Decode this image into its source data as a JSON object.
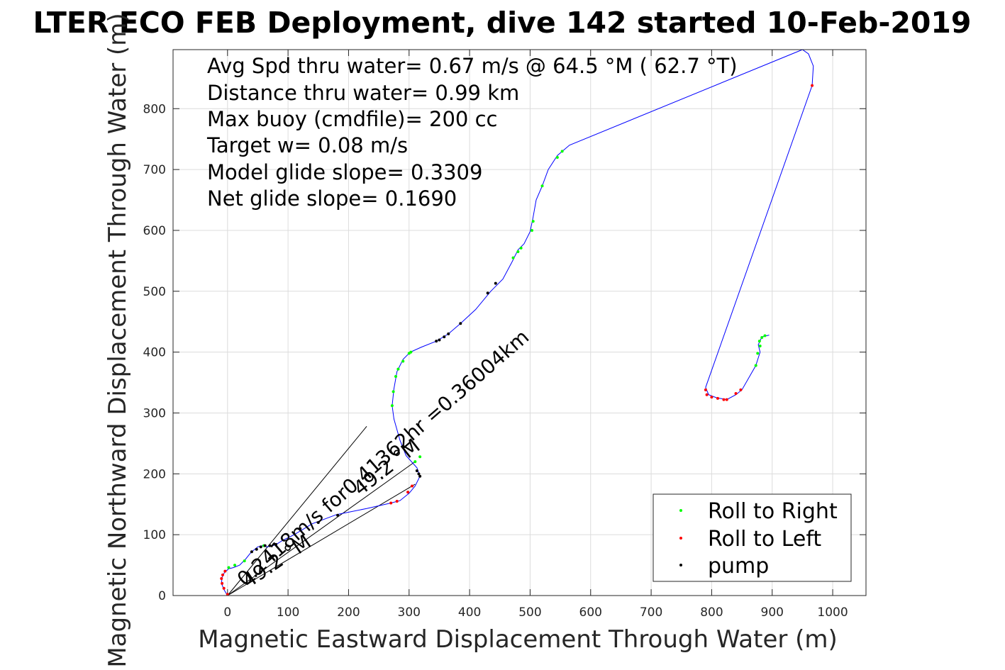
{
  "chart_data": {
    "type": "line",
    "title": "LTER ECO FEB Deployment, dive 142 started 10-Feb-2019",
    "xlabel": "Magnetic Eastward Displacement Through Water (m)",
    "ylabel": "Magnetic Northward Displacement Through Water (m)",
    "xlim": [
      -90,
      1055
    ],
    "ylim": [
      0,
      897
    ],
    "xticks": [
      0,
      100,
      200,
      300,
      400,
      500,
      600,
      700,
      800,
      900,
      1000
    ],
    "yticks": [
      0,
      100,
      200,
      300,
      400,
      500,
      600,
      700,
      800
    ],
    "grid": true,
    "track_color": "#0000ff",
    "track": [
      [
        0,
        0
      ],
      [
        -6,
        10
      ],
      [
        -10,
        20
      ],
      [
        -9,
        30
      ],
      [
        -5,
        38
      ],
      [
        2,
        44
      ],
      [
        10,
        46
      ],
      [
        20,
        50
      ],
      [
        30,
        60
      ],
      [
        38,
        70
      ],
      [
        45,
        76
      ],
      [
        50,
        80
      ],
      [
        58,
        82
      ],
      [
        65,
        80
      ],
      [
        75,
        82
      ],
      [
        82,
        85
      ],
      [
        90,
        90
      ],
      [
        110,
        100
      ],
      [
        140,
        118
      ],
      [
        180,
        133
      ],
      [
        230,
        143
      ],
      [
        270,
        152
      ],
      [
        285,
        156
      ],
      [
        300,
        168
      ],
      [
        310,
        180
      ],
      [
        318,
        196
      ],
      [
        313,
        210
      ],
      [
        295,
        230
      ],
      [
        285,
        255
      ],
      [
        275,
        290
      ],
      [
        272,
        312
      ],
      [
        275,
        340
      ],
      [
        280,
        368
      ],
      [
        290,
        388
      ],
      [
        302,
        400
      ],
      [
        320,
        408
      ],
      [
        345,
        418
      ],
      [
        365,
        430
      ],
      [
        385,
        447
      ],
      [
        410,
        470
      ],
      [
        435,
        500
      ],
      [
        455,
        520
      ],
      [
        470,
        548
      ],
      [
        480,
        568
      ],
      [
        490,
        578
      ],
      [
        500,
        598
      ],
      [
        505,
        622
      ],
      [
        510,
        650
      ],
      [
        520,
        673
      ],
      [
        530,
        700
      ],
      [
        545,
        723
      ],
      [
        565,
        740
      ],
      [
        950,
        897
      ],
      [
        960,
        890
      ],
      [
        968,
        870
      ],
      [
        966,
        838
      ],
      [
        790,
        342
      ],
      [
        795,
        330
      ],
      [
        808,
        325
      ],
      [
        825,
        322
      ],
      [
        840,
        330
      ],
      [
        850,
        338
      ],
      [
        873,
        378
      ],
      [
        880,
        400
      ],
      [
        877,
        412
      ],
      [
        883,
        425
      ],
      [
        895,
        428
      ]
    ],
    "series": [
      {
        "name": "Roll to Right",
        "color": "#00ff00",
        "x": [
          2,
          12,
          28,
          60,
          272,
          274,
          278,
          282,
          290,
          300,
          303,
          545,
          553,
          520,
          503,
          505,
          480,
          485,
          472,
          310,
          318,
          873,
          876,
          880,
          879,
          883,
          888
        ],
        "y": [
          46,
          50,
          57,
          82,
          312,
          335,
          360,
          372,
          385,
          398,
          400,
          720,
          730,
          673,
          600,
          615,
          565,
          571,
          555,
          220,
          228,
          378,
          398,
          410,
          418,
          424,
          427
        ]
      },
      {
        "name": "Roll to Left",
        "color": "#ff0000",
        "x": [
          -6,
          -9,
          -10,
          -8,
          -4,
          0,
          270,
          280,
          298,
          305,
          966,
          790,
          792,
          800,
          810,
          820,
          825,
          840,
          848
        ],
        "y": [
          12,
          20,
          28,
          34,
          40,
          2,
          152,
          155,
          170,
          180,
          838,
          338,
          330,
          326,
          324,
          322,
          322,
          332,
          338
        ]
      },
      {
        "name": "pump",
        "color": "#000000",
        "x": [
          40,
          48,
          55,
          62,
          70,
          80,
          120,
          150,
          182,
          313,
          316,
          318,
          345,
          350,
          358,
          365,
          385,
          430,
          443
        ],
        "y": [
          72,
          76,
          80,
          82,
          82,
          84,
          110,
          120,
          132,
          205,
          200,
          196,
          418,
          420,
          425,
          430,
          447,
          497,
          513
        ]
      }
    ],
    "reference_lines": [
      {
        "x": [
          0,
          230
        ],
        "y": [
          0,
          278
        ]
      },
      {
        "x": [
          0,
          310
        ],
        "y": [
          0,
          183
        ]
      },
      {
        "x": [
          0,
          310
        ],
        "y": [
          0,
          220
        ]
      }
    ],
    "stats": [
      "Avg Spd thru water=  0.67 m/s @  64.5 °M ( 62.7 °T)",
      "Distance thru water=  0.99 km",
      "Max buoy (cmdfile)= 200 cc",
      "Target w= 0.08 m/s",
      "Model glide slope= 0.3309",
      "Net glide slope= 0.1690"
    ],
    "annotations": [
      "0.2418m/s for0.41362hr =0.36004km",
      "49.2 °M",
      "49.2 °M"
    ],
    "legend_position": "bottom-right"
  }
}
